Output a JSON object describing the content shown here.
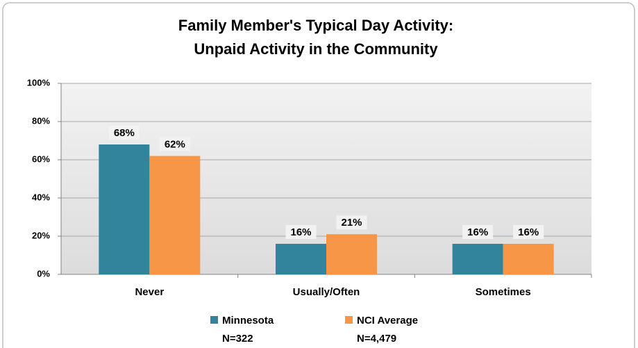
{
  "chart_data": {
    "type": "bar",
    "title": [
      "Family Member's Typical Day Activity:",
      "Unpaid Activity in the Community"
    ],
    "categories": [
      "Never",
      "Usually/Often",
      "Sometimes"
    ],
    "series": [
      {
        "name": "Minnesota",
        "note": "N=322",
        "color": "#31849b",
        "values": [
          68,
          16,
          16
        ],
        "value_labels": [
          "68%",
          "16%",
          "16%"
        ]
      },
      {
        "name": "NCI Average",
        "note": "N=4,479",
        "color": "#f79646",
        "values": [
          62,
          21,
          16
        ],
        "value_labels": [
          "62%",
          "21%",
          "16%"
        ]
      }
    ],
    "ylim": [
      0,
      100
    ],
    "yticks": [
      {
        "value": 0,
        "label": "0%"
      },
      {
        "value": 20,
        "label": "20%"
      },
      {
        "value": 40,
        "label": "40%"
      },
      {
        "value": 60,
        "label": "60%"
      },
      {
        "value": 80,
        "label": "80%"
      },
      {
        "value": 100,
        "label": "100%"
      }
    ],
    "grid": true,
    "legend": "bottom"
  }
}
